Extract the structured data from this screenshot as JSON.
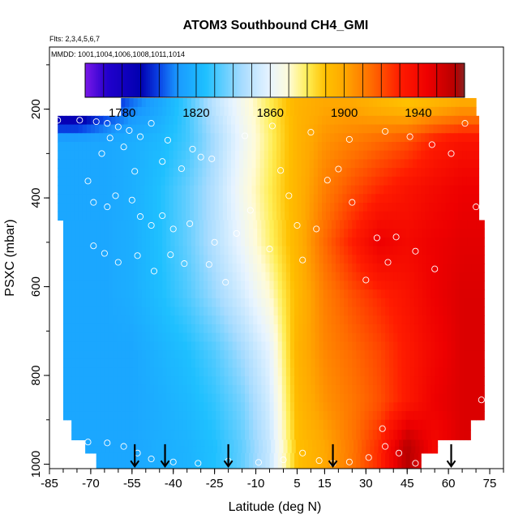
{
  "chart_data": {
    "type": "heatmap",
    "title": "ATOM3 Southbound CH4_GMI",
    "flights_note": "Flts: 2,3,4,5,6,7",
    "dates_note": "MMDD: 1001,1004,1006,1008,1011,1014",
    "xlabel": "Latitude (deg N)",
    "ylabel": "PSXC (mbar)",
    "xlim": [
      -85,
      80
    ],
    "ylim": [
      1010,
      60
    ],
    "x_ticks": [
      -85,
      -70,
      -55,
      -40,
      -25,
      -10,
      5,
      15,
      30,
      45,
      60,
      75
    ],
    "x_tick_labels": [
      "-85",
      "-70",
      "-55",
      "-40",
      "-25",
      "-10",
      "5",
      "15",
      "30",
      "45",
      "60",
      "75"
    ],
    "y_ticks": [
      200,
      400,
      600,
      800,
      1000
    ],
    "y_tick_labels": [
      "200",
      "400",
      "600",
      "800",
      "1000"
    ],
    "colorbar": {
      "range": [
        1760,
        1965
      ],
      "ticks": [
        1780,
        1820,
        1860,
        1900,
        1940
      ],
      "tick_labels": [
        "1780",
        "1820",
        "1860",
        "1900",
        "1940"
      ],
      "stops": [
        {
          "v": 1760,
          "c": "#7a18e8"
        },
        {
          "v": 1772,
          "c": "#2200cc"
        },
        {
          "v": 1790,
          "c": "#0000b0"
        },
        {
          "v": 1800,
          "c": "#0a44e6"
        },
        {
          "v": 1810,
          "c": "#1a9aff"
        },
        {
          "v": 1825,
          "c": "#1ec0ff"
        },
        {
          "v": 1845,
          "c": "#a8dcff"
        },
        {
          "v": 1860,
          "c": "#e8f4ff"
        },
        {
          "v": 1870,
          "c": "#fffbd8"
        },
        {
          "v": 1880,
          "c": "#ffee55"
        },
        {
          "v": 1890,
          "c": "#ffc000"
        },
        {
          "v": 1900,
          "c": "#ffa800"
        },
        {
          "v": 1915,
          "c": "#ff6a00"
        },
        {
          "v": 1930,
          "c": "#ff1c00"
        },
        {
          "v": 1945,
          "c": "#ee0000"
        },
        {
          "v": 1960,
          "c": "#b60000"
        },
        {
          "v": 1965,
          "c": "#882222"
        }
      ]
    },
    "field_lat": [
      -75,
      -65,
      -55,
      -45,
      -35,
      -25,
      -15,
      -5,
      5,
      15,
      25,
      35,
      45,
      55,
      65
    ],
    "field_levels_mbar": [
      190,
      270,
      380,
      500,
      620,
      740,
      860,
      960
    ],
    "field_values": [
      [
        1765,
        1790,
        1805,
        1815,
        1830,
        1850,
        1865,
        1880,
        1895,
        1900,
        1900,
        1895,
        1890,
        1895,
        1900
      ],
      [
        1815,
        1815,
        1818,
        1822,
        1830,
        1845,
        1862,
        1878,
        1895,
        1905,
        1910,
        1915,
        1920,
        1930,
        1935
      ],
      [
        1815,
        1815,
        1818,
        1825,
        1835,
        1848,
        1865,
        1880,
        1895,
        1910,
        1920,
        1928,
        1935,
        1940,
        1945
      ],
      [
        1815,
        1815,
        1818,
        1825,
        1835,
        1848,
        1862,
        1878,
        1895,
        1915,
        1930,
        1945,
        1940,
        1945,
        1948
      ],
      [
        1815,
        1815,
        1818,
        1824,
        1832,
        1843,
        1855,
        1870,
        1893,
        1910,
        1920,
        1928,
        1935,
        1945,
        1950
      ],
      [
        1815,
        1815,
        1815,
        1820,
        1825,
        1833,
        1845,
        1860,
        1895,
        1908,
        1915,
        1922,
        1932,
        1942,
        1950
      ],
      [
        1815,
        1815,
        1815,
        1818,
        1822,
        1828,
        1838,
        1855,
        1893,
        1905,
        1912,
        1920,
        1932,
        1945,
        1950
      ],
      [
        1815,
        1815,
        1815,
        1818,
        1820,
        1825,
        1835,
        1852,
        1890,
        1900,
        1912,
        1928,
        1960,
        1940,
        1950
      ]
    ],
    "coverage": [
      {
        "p_top": 175,
        "p_bot": 215,
        "lat_min": -59,
        "lat_max": 70
      },
      {
        "p_top": 215,
        "p_bot": 450,
        "lat_min": -82,
        "lat_max": 71
      },
      {
        "p_top": 450,
        "p_bot": 900,
        "lat_min": -80,
        "lat_max": 73
      },
      {
        "p_top": 900,
        "p_bot": 945,
        "lat_min": -77,
        "lat_max": 68
      },
      {
        "p_top": 945,
        "p_bot": 975,
        "lat_min": -72,
        "lat_max": 56
      },
      {
        "p_top": 975,
        "p_bot": 1010,
        "lat_min": -68,
        "lat_max": 50
      }
    ],
    "observations": [
      {
        "lat": -82,
        "p": 225
      },
      {
        "lat": -74,
        "p": 225
      },
      {
        "lat": -68,
        "p": 228
      },
      {
        "lat": -64,
        "p": 232
      },
      {
        "lat": -60,
        "p": 240
      },
      {
        "lat": -56,
        "p": 248
      },
      {
        "lat": -52,
        "p": 262
      },
      {
        "lat": -48,
        "p": 232
      },
      {
        "lat": -42,
        "p": 270
      },
      {
        "lat": -33,
        "p": 290
      },
      {
        "lat": -26,
        "p": 312
      },
      {
        "lat": -63,
        "p": 265
      },
      {
        "lat": -66,
        "p": 300
      },
      {
        "lat": -58,
        "p": 285
      },
      {
        "lat": -54,
        "p": 340
      },
      {
        "lat": -44,
        "p": 318
      },
      {
        "lat": -37,
        "p": 334
      },
      {
        "lat": -30,
        "p": 308
      },
      {
        "lat": -71,
        "p": 362
      },
      {
        "lat": -69,
        "p": 410
      },
      {
        "lat": -64,
        "p": 420
      },
      {
        "lat": -61,
        "p": 395
      },
      {
        "lat": -55,
        "p": 405
      },
      {
        "lat": -52,
        "p": 442
      },
      {
        "lat": -48,
        "p": 462
      },
      {
        "lat": -44,
        "p": 440
      },
      {
        "lat": -40,
        "p": 470
      },
      {
        "lat": -34,
        "p": 458
      },
      {
        "lat": -25,
        "p": 500
      },
      {
        "lat": -69,
        "p": 508
      },
      {
        "lat": -65,
        "p": 525
      },
      {
        "lat": -60,
        "p": 545
      },
      {
        "lat": -53,
        "p": 530
      },
      {
        "lat": -47,
        "p": 565
      },
      {
        "lat": -41,
        "p": 528
      },
      {
        "lat": -36,
        "p": 548
      },
      {
        "lat": -27,
        "p": 550
      },
      {
        "lat": -21,
        "p": 590
      },
      {
        "lat": -17,
        "p": 480
      },
      {
        "lat": -12,
        "p": 428
      },
      {
        "lat": -5,
        "p": 515
      },
      {
        "lat": -1,
        "p": 338
      },
      {
        "lat": 2,
        "p": 395
      },
      {
        "lat": 5,
        "p": 462
      },
      {
        "lat": 7,
        "p": 540
      },
      {
        "lat": 12,
        "p": 470
      },
      {
        "lat": 16,
        "p": 360
      },
      {
        "lat": 20,
        "p": 335
      },
      {
        "lat": 25,
        "p": 410
      },
      {
        "lat": 30,
        "p": 585
      },
      {
        "lat": 34,
        "p": 490
      },
      {
        "lat": 38,
        "p": 545
      },
      {
        "lat": 41,
        "p": 488
      },
      {
        "lat": 48,
        "p": 520
      },
      {
        "lat": 55,
        "p": 560
      },
      {
        "lat": 61,
        "p": 300
      },
      {
        "lat": 70,
        "p": 420
      },
      {
        "lat": 66,
        "p": 232
      },
      {
        "lat": 54,
        "p": 280
      },
      {
        "lat": 46,
        "p": 262
      },
      {
        "lat": 37,
        "p": 250
      },
      {
        "lat": 24,
        "p": 268
      },
      {
        "lat": 10,
        "p": 252
      },
      {
        "lat": -4,
        "p": 238
      },
      {
        "lat": -14,
        "p": 260
      },
      {
        "lat": -78,
        "p": 962
      },
      {
        "lat": -71,
        "p": 950
      },
      {
        "lat": -64,
        "p": 952
      },
      {
        "lat": -58,
        "p": 960
      },
      {
        "lat": -53,
        "p": 975
      },
      {
        "lat": -48,
        "p": 988
      },
      {
        "lat": -40,
        "p": 995
      },
      {
        "lat": -31,
        "p": 998
      },
      {
        "lat": -20,
        "p": 993
      },
      {
        "lat": -9,
        "p": 996
      },
      {
        "lat": 0,
        "p": 990
      },
      {
        "lat": 7,
        "p": 975
      },
      {
        "lat": 13,
        "p": 992
      },
      {
        "lat": 18,
        "p": 998
      },
      {
        "lat": 24,
        "p": 995
      },
      {
        "lat": 31,
        "p": 985
      },
      {
        "lat": 37,
        "p": 960
      },
      {
        "lat": 42,
        "p": 975
      },
      {
        "lat": 48,
        "p": 998
      },
      {
        "lat": -82,
        "p": 870
      },
      {
        "lat": 72,
        "p": 855
      },
      {
        "lat": 36,
        "p": 920
      }
    ],
    "sounding_markers": [
      -54,
      -43,
      -20,
      18,
      61
    ]
  }
}
